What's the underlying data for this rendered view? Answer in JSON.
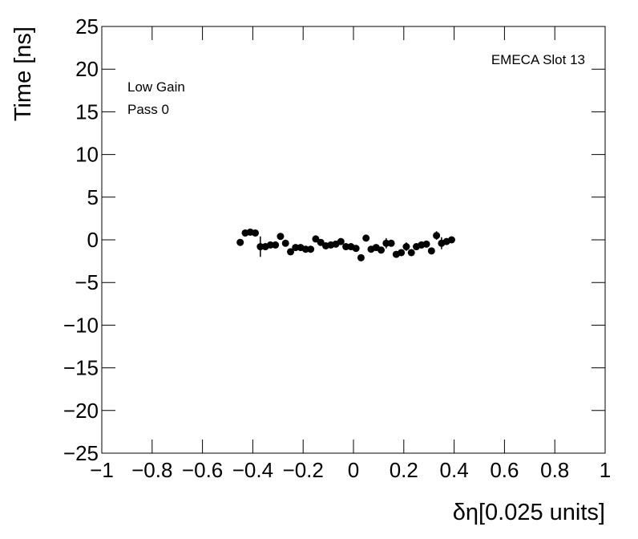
{
  "chart_data": {
    "type": "scatter",
    "x_label": "δη[0.025 units]",
    "y_label": "Time [ns]",
    "annotations": [
      "EMECA Slot 13",
      "Low Gain",
      "Pass 0"
    ],
    "x": [
      -0.45,
      -0.43,
      -0.41,
      -0.39,
      -0.37,
      -0.35,
      -0.33,
      -0.31,
      -0.29,
      -0.27,
      -0.25,
      -0.23,
      -0.21,
      -0.19,
      -0.17,
      -0.15,
      -0.13,
      -0.11,
      -0.09,
      -0.07,
      -0.05,
      -0.03,
      -0.01,
      0.01,
      0.03,
      0.05,
      0.07,
      0.09,
      0.11,
      0.13,
      0.15,
      0.17,
      0.19,
      0.21,
      0.23,
      0.25,
      0.27,
      0.29,
      0.31,
      0.33,
      0.35,
      0.37,
      0.39
    ],
    "values": [
      -0.3,
      0.8,
      0.9,
      0.8,
      -0.8,
      -0.8,
      -0.6,
      -0.6,
      0.4,
      -0.4,
      -1.4,
      -0.9,
      -0.9,
      -1.1,
      -1.1,
      0.1,
      -0.3,
      -0.7,
      -0.6,
      -0.5,
      -0.2,
      -0.8,
      -0.8,
      -1.0,
      -2.1,
      0.2,
      -1.1,
      -0.9,
      -1.2,
      -0.4,
      -0.4,
      -1.7,
      -1.5,
      -0.8,
      -1.5,
      -0.8,
      -0.6,
      -0.5,
      -1.3,
      0.5,
      -0.4,
      -0.2,
      0.0
    ],
    "errors": [
      0.4,
      0.3,
      0.3,
      0.3,
      1.2,
      0.4,
      0.3,
      0.3,
      0.3,
      0.3,
      0.3,
      0.3,
      0.3,
      0.3,
      0.3,
      0.3,
      0.3,
      0.3,
      0.3,
      0.3,
      0.3,
      0.3,
      0.3,
      0.3,
      0.4,
      0.3,
      0.3,
      0.3,
      0.3,
      0.6,
      0.3,
      0.3,
      0.3,
      0.5,
      0.3,
      0.3,
      0.3,
      0.3,
      0.3,
      0.5,
      0.7,
      0.3,
      0.3
    ],
    "color": "#000000",
    "xlim": [
      -1,
      1
    ],
    "ylim": [
      -25,
      25
    ],
    "xticks": [
      {
        "value": -1,
        "label": "−1"
      },
      {
        "value": -0.8,
        "label": "−0.8"
      },
      {
        "value": -0.6,
        "label": "−0.6"
      },
      {
        "value": -0.4,
        "label": "−0.4"
      },
      {
        "value": -0.2,
        "label": "−0.2"
      },
      0,
      0.2,
      0.4,
      0.6,
      0.8,
      1
    ],
    "yticks": [
      {
        "value": -25,
        "label": "−25"
      },
      {
        "value": -20,
        "label": "−20"
      },
      {
        "value": -15,
        "label": "−15"
      },
      {
        "value": -10,
        "label": "−10"
      },
      {
        "value": -5,
        "label": "−5"
      },
      0,
      5,
      10,
      15,
      20,
      25
    ],
    "grid": false
  }
}
